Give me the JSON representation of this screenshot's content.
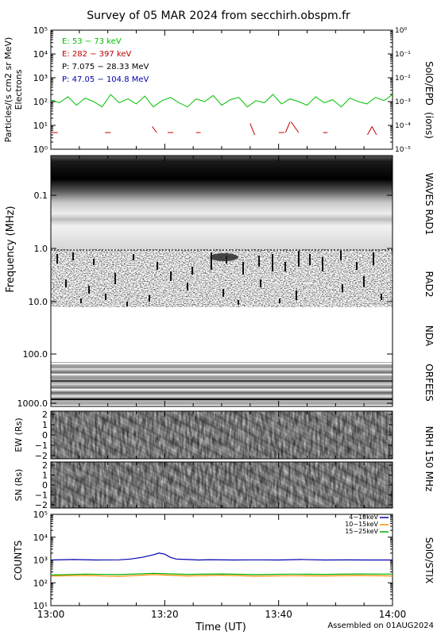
{
  "title": "Survey of 05 MAR 2024 from secchirh.obspm.fr",
  "footer": "Assembled on 01AUG2024",
  "xaxis": {
    "label": "Time (UT)",
    "range": [
      "13:00",
      "14:00"
    ],
    "ticks": [
      "13:00",
      "13:20",
      "13:40",
      "14:00"
    ]
  },
  "panels": {
    "epd": {
      "ylabel_left": "Particles/(s cm2 sr MeV)",
      "ylabel_left_sub": "Electrons",
      "ylabel_right": "(ions)",
      "instrument": "SolO/EPD",
      "left_ticks": [
        "10⁰",
        "10¹",
        "10²",
        "10³",
        "10⁴",
        "10⁵"
      ],
      "right_ticks": [
        "10⁻⁵",
        "10⁻⁴",
        "10⁻³",
        "10⁻²",
        "10⁻¹",
        "10⁰"
      ],
      "legend": [
        {
          "label": "E: 53 − 73 keV",
          "color": "#00c000"
        },
        {
          "label": "E: 282 − 397 keV",
          "color": "#c00000"
        },
        {
          "label": "P: 7.075 − 28.33 MeV",
          "color": "#000000"
        },
        {
          "label": "P: 47.05 − 104.8 MeV",
          "color": "#0000b0"
        }
      ]
    },
    "radio": {
      "ylabel": "Frequency (MHz)",
      "ticks": [
        "0.1",
        "1.0",
        "10.0",
        "100.0",
        "1000.0"
      ],
      "labels": [
        "WAVES RAD1",
        "RAD2",
        "NDA",
        "ORFEES"
      ]
    },
    "nrh": {
      "ew_label": "EW (Rs)",
      "sn_label": "SN (Rs)",
      "instrument": "NRH 150 MHz",
      "ticks": [
        "2",
        "1",
        "0",
        "−1",
        "−2"
      ]
    },
    "stix": {
      "ylabel": "COUNTS",
      "instrument": "SolO/STIX",
      "ticks": [
        "10¹",
        "10²",
        "10³",
        "10⁴",
        "10⁵"
      ],
      "legend": [
        {
          "label": "4−10keV",
          "color": "#0000b0"
        },
        {
          "label": "10−15keV",
          "color": "#ff8c00"
        },
        {
          "label": "15−25keV",
          "color": "#00b000"
        }
      ]
    }
  },
  "chart_data": [
    {
      "type": "line",
      "title": "SolO/EPD",
      "ylog": true,
      "ylim": [
        1,
        100000
      ],
      "xlim": [
        "13:00",
        "14:00"
      ],
      "series": [
        {
          "name": "E: 53 − 73 keV",
          "color": "#00c000",
          "t": [
            0,
            1.5,
            3,
            4.5,
            6,
            7.5,
            9,
            10.5,
            12,
            13.5,
            15,
            16.5,
            18,
            19.5,
            21,
            22.5,
            24,
            25.5,
            27,
            28.5,
            30,
            31.5,
            33,
            34.5,
            36,
            37.5,
            39,
            40.5,
            42,
            43.5,
            45,
            46.5,
            48,
            49.5,
            51,
            52.5,
            54,
            55.5,
            57,
            58.5,
            60
          ],
          "values": [
            120,
            90,
            160,
            70,
            140,
            100,
            60,
            200,
            90,
            130,
            80,
            170,
            60,
            110,
            150,
            90,
            60,
            130,
            100,
            180,
            70,
            120,
            150,
            60,
            110,
            90,
            200,
            80,
            130,
            100,
            70,
            160,
            90,
            120,
            60,
            140,
            100,
            80,
            150,
            110,
            200
          ]
        },
        {
          "name": "E: 282 − 397 keV",
          "color": "#c00000",
          "segments": [
            {
              "t": [
                0,
                1.2
              ],
              "values": [
                5,
                5
              ]
            },
            {
              "t": [
                9.5,
                10.5
              ],
              "values": [
                5,
                5
              ]
            },
            {
              "t": [
                17.8,
                18.6
              ],
              "values": [
                9,
                5
              ]
            },
            {
              "t": [
                20.5,
                21.5
              ],
              "values": [
                5,
                5
              ]
            },
            {
              "t": [
                25.5,
                26.3
              ],
              "values": [
                5,
                5
              ]
            },
            {
              "t": [
                35.0,
                35.8
              ],
              "values": [
                12,
                4
              ]
            },
            {
              "t": [
                40.0,
                41.0
              ],
              "values": [
                5,
                5
              ]
            },
            {
              "t": [
                41.2,
                42.0
              ],
              "values": [
                5,
                14
              ]
            },
            {
              "t": [
                42.2,
                43.5
              ],
              "values": [
                14,
                5
              ]
            },
            {
              "t": [
                47.8,
                48.6
              ],
              "values": [
                5,
                5
              ]
            },
            {
              "t": [
                55.6,
                56.4
              ],
              "values": [
                4,
                9
              ]
            },
            {
              "t": [
                56.4,
                57.2
              ],
              "values": [
                9,
                4
              ]
            }
          ]
        }
      ]
    },
    {
      "type": "line",
      "title": "SolO/STIX",
      "ylog": true,
      "ylim": [
        10,
        100000
      ],
      "xlim": [
        "13:00",
        "14:00"
      ],
      "series": [
        {
          "name": "4−10keV",
          "color": "#0000b0",
          "t": [
            0,
            4,
            8,
            12,
            14,
            16,
            18,
            19,
            20,
            21,
            22,
            24,
            26,
            28,
            32,
            36,
            40,
            44,
            48,
            52,
            56,
            60
          ],
          "values": [
            1000,
            1050,
            1000,
            1020,
            1100,
            1300,
            1700,
            2000,
            1800,
            1300,
            1100,
            1050,
            1000,
            1030,
            1000,
            1020,
            1000,
            1050,
            1000,
            1010,
            1000,
            1000
          ]
        },
        {
          "name": "10−15keV",
          "color": "#ff8c00",
          "t": [
            0,
            6,
            12,
            18,
            24,
            30,
            36,
            42,
            48,
            54,
            60
          ],
          "values": [
            200,
            210,
            190,
            230,
            200,
            215,
            195,
            205,
            200,
            210,
            200
          ]
        },
        {
          "name": "15−25keV",
          "color": "#00b000",
          "t": [
            0,
            6,
            12,
            18,
            24,
            30,
            36,
            42,
            48,
            54,
            60
          ],
          "values": [
            220,
            240,
            230,
            260,
            235,
            245,
            230,
            240,
            235,
            245,
            240
          ]
        }
      ]
    }
  ]
}
